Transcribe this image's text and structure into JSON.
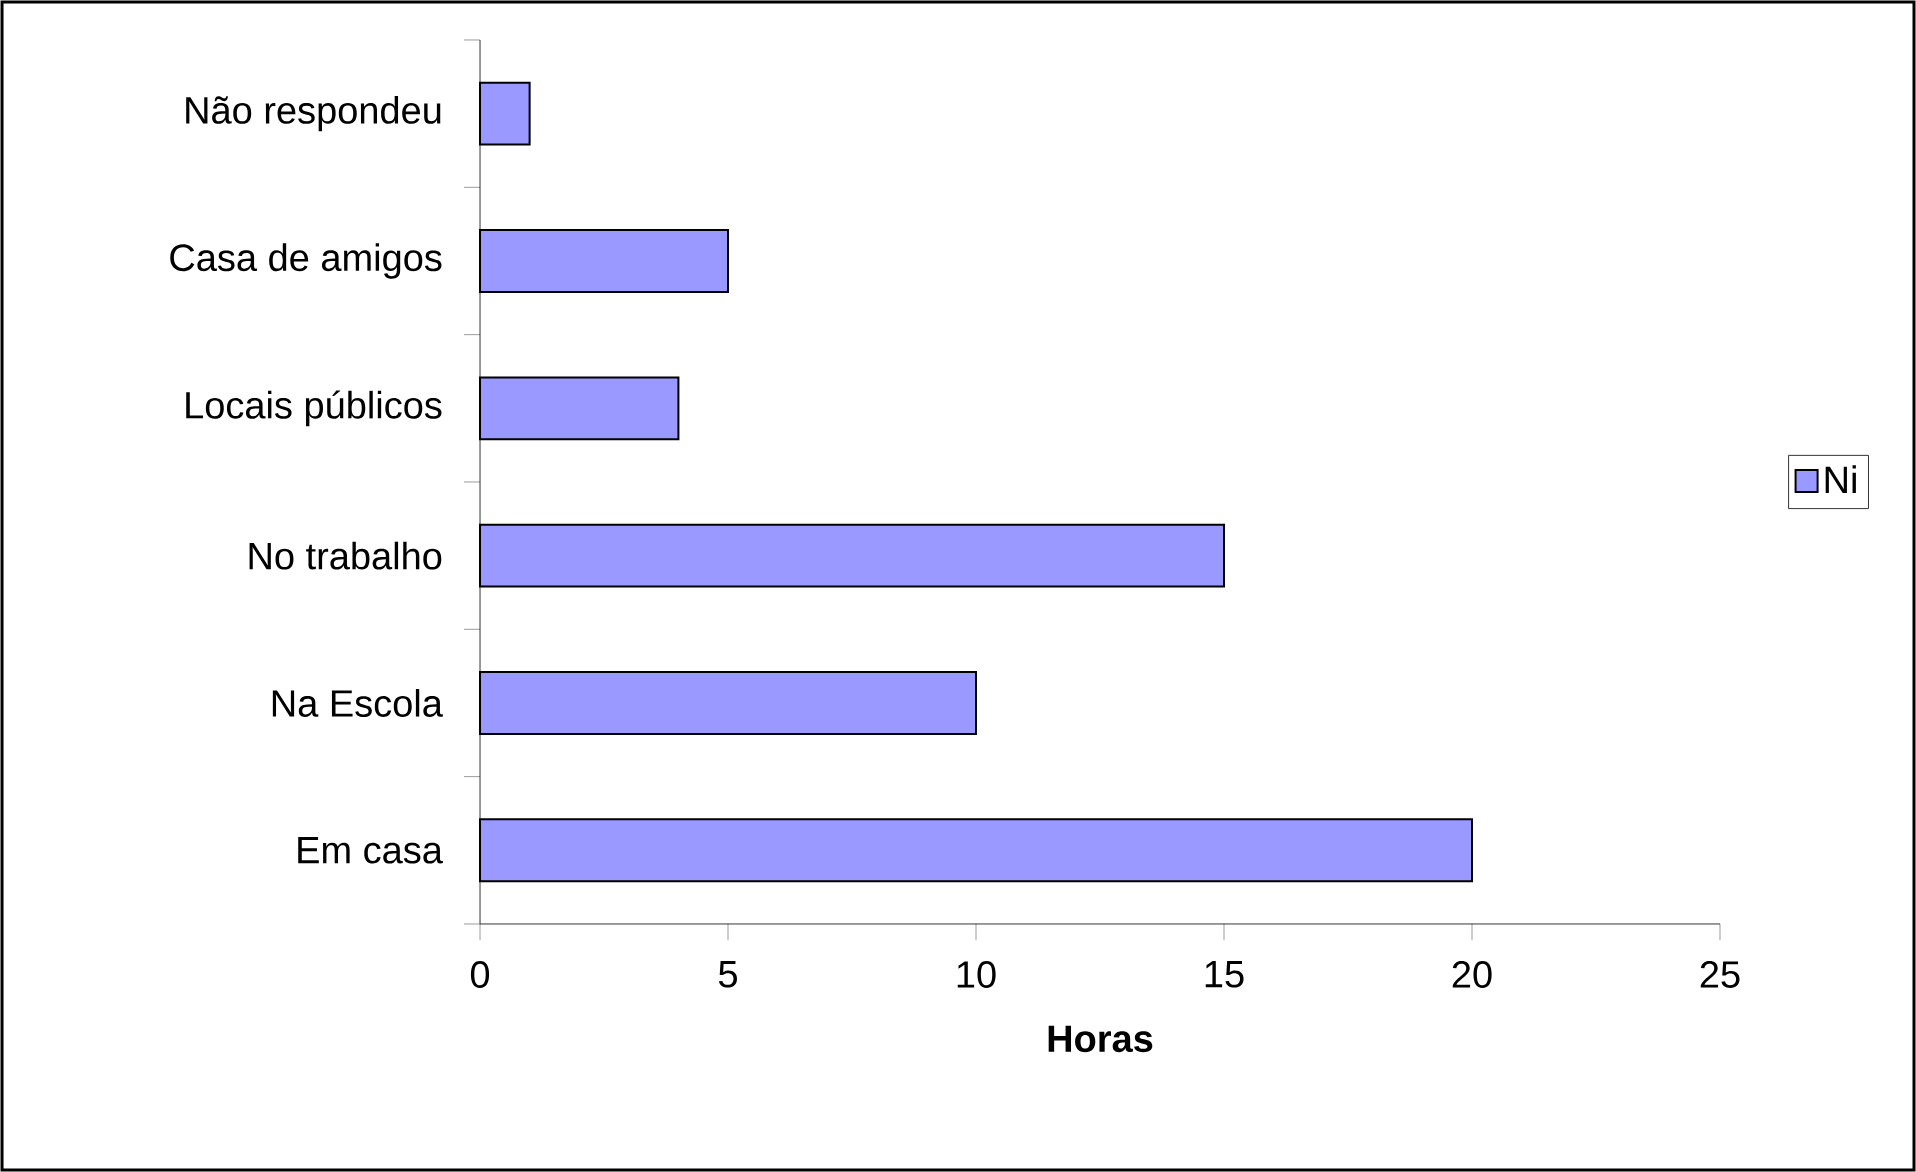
{
  "chart_data": {
    "type": "bar",
    "orientation": "horizontal",
    "categories": [
      "Não respondeu",
      "Casa de amigos",
      "Locais públicos",
      "No trabalho",
      "Na Escola",
      "Em casa"
    ],
    "series": [
      {
        "name": "Ni",
        "color": "#9999ff",
        "values": [
          1,
          5,
          4,
          15,
          10,
          20
        ]
      }
    ],
    "xlabel": "Horas",
    "xlim": [
      0,
      25
    ],
    "xticks": [
      0,
      5,
      10,
      15,
      20,
      25
    ],
    "grid": false,
    "legend": "right"
  }
}
